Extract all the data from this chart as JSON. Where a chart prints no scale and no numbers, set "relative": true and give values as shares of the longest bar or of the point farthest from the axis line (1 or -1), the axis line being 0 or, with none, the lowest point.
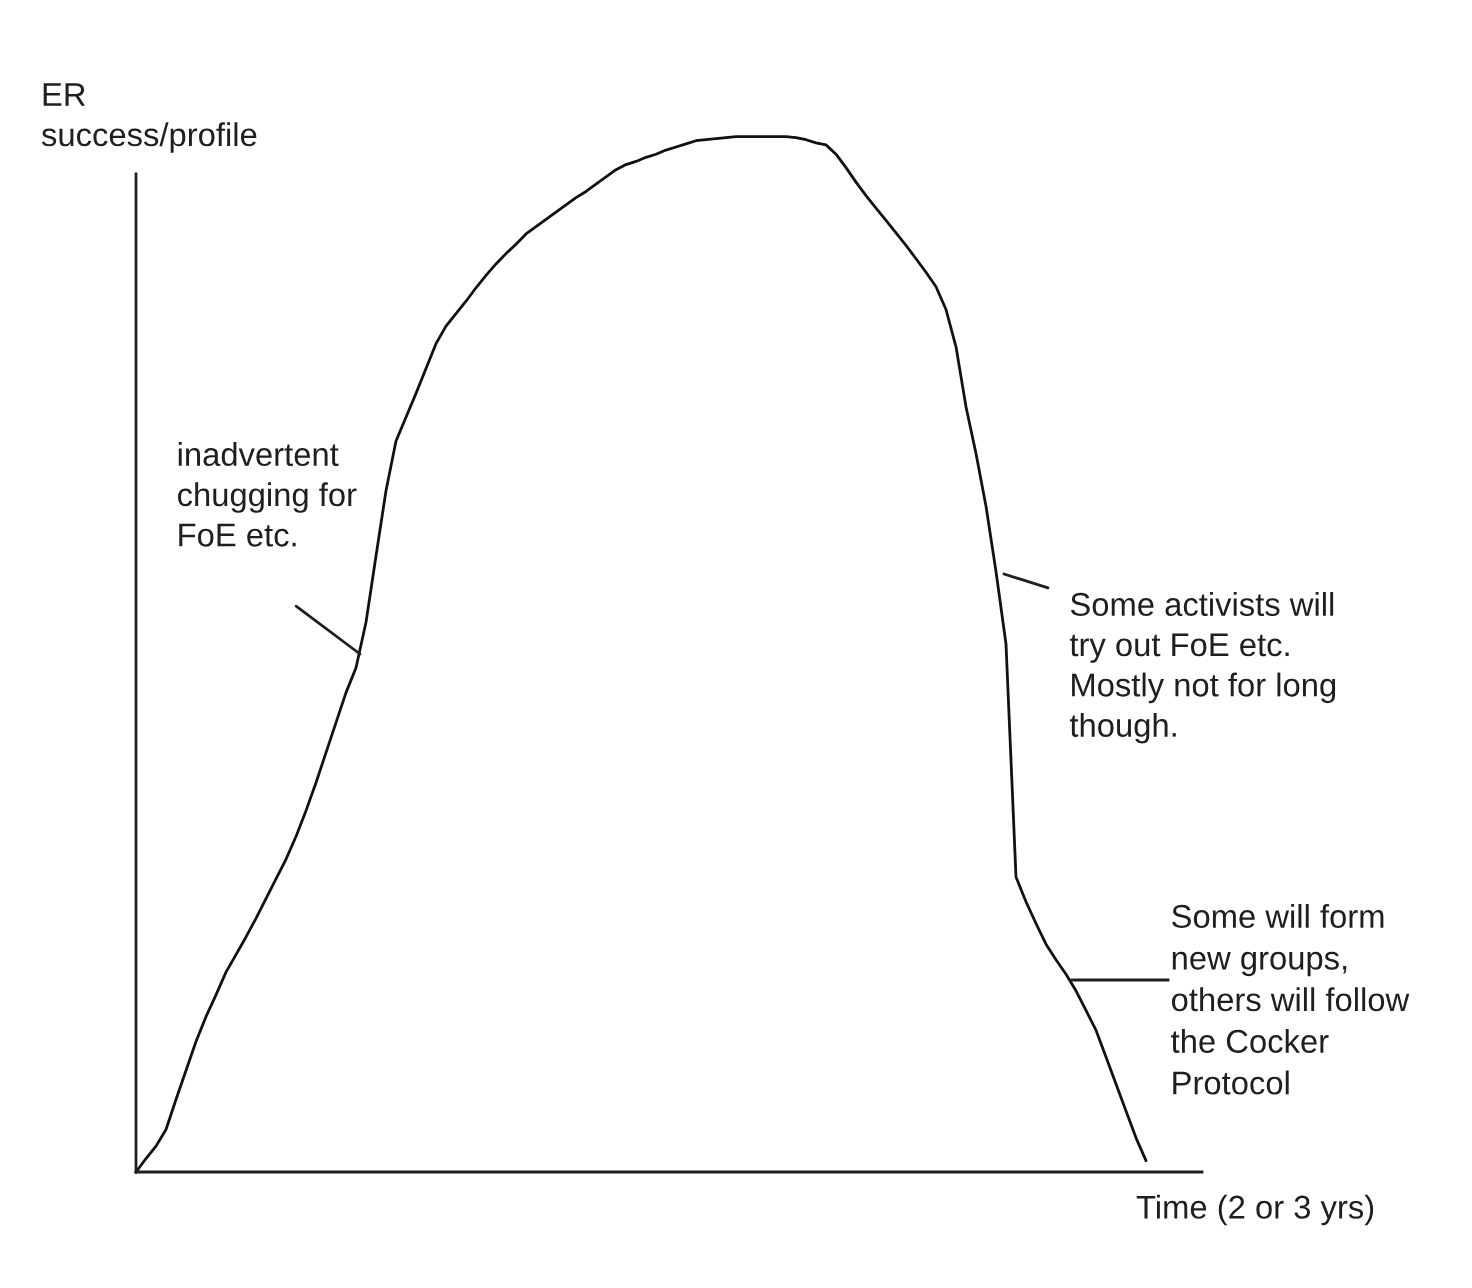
{
  "chart_data": {
    "type": "line",
    "relative": true,
    "xlabel": "Time (2 or 3 yrs)",
    "ylabel": "ER\nsuccess/profile",
    "categories": [
      null,
      null,
      null,
      null,
      null,
      null,
      null,
      null,
      null,
      null,
      null,
      null,
      null,
      null,
      null,
      null,
      null,
      null,
      null,
      null,
      null,
      null,
      null,
      null,
      null,
      null,
      null,
      null,
      null,
      null,
      null,
      null,
      null,
      null,
      null,
      null,
      null,
      null,
      null,
      null,
      null,
      null,
      null,
      null,
      null,
      null,
      null,
      null,
      null,
      null,
      null,
      null,
      null,
      null,
      null,
      null,
      null,
      null,
      null,
      null,
      null,
      null,
      null,
      null,
      null,
      null,
      null,
      null,
      null,
      null,
      null,
      null,
      null,
      null,
      null,
      null,
      null,
      null,
      null,
      null,
      null,
      null,
      null,
      null,
      null,
      null,
      null,
      null,
      null,
      null,
      null,
      null,
      null,
      null,
      null,
      null,
      null,
      null,
      null,
      null,
      null,
      null
    ],
    "series": [
      {
        "color": "#111111",
        "values": [
          0,
          0.013,
          0.025,
          0.041,
          0.07,
          0.098,
          0.126,
          0.15,
          0.171,
          0.193,
          0.21,
          0.227,
          0.245,
          0.264,
          0.283,
          0.302,
          0.324,
          0.349,
          0.376,
          0.405,
          0.434,
          0.463,
          0.487,
          0.531,
          0.595,
          0.658,
          0.706,
          0.729,
          0.752,
          0.776,
          0.8,
          0.817,
          0.829,
          0.841,
          0.854,
          0.866,
          0.877,
          0.887,
          0.896,
          0.906,
          0.913,
          0.92,
          0.927,
          0.934,
          0.941,
          0.947,
          0.954,
          0.961,
          0.968,
          0.973,
          0.976,
          0.98,
          0.983,
          0.987,
          0.99,
          0.993,
          0.996,
          0.997,
          0.998,
          0.999,
          1,
          1,
          1,
          1,
          1,
          1,
          0.999,
          0.997,
          0.994,
          0.992,
          0.983,
          0.97,
          0.956,
          0.943,
          0.931,
          0.919,
          0.907,
          0.895,
          0.882,
          0.869,
          0.855,
          0.833,
          0.797,
          0.739,
          0.694,
          0.643,
          0.58,
          0.51,
          0.285,
          0.261,
          0.24,
          0.22,
          0.205,
          0.191,
          0.175,
          0.156,
          0.137,
          0.111,
          0.085,
          0.059,
          0.033,
          0.011
        ]
      }
    ],
    "annotations": [
      "inadvertent\nchugging for\nFoE etc.",
      "Some activists will\ntry out FoE etc.\nMostly not for long\nthough.",
      "Some will form\nnew groups,\nothers will follow\nthe Cocker\nProtocol"
    ]
  }
}
